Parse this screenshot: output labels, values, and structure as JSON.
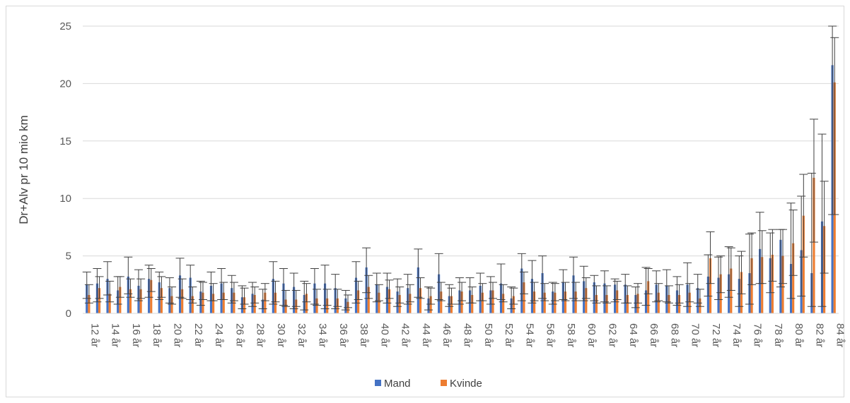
{
  "chart_data": {
    "type": "bar",
    "title": "",
    "xlabel": "",
    "ylabel": "Dr+Alv pr 10 mio km",
    "ylim": [
      0,
      25
    ],
    "yticks": [
      0,
      5,
      10,
      15,
      20,
      25
    ],
    "grid": true,
    "legend": "bottom",
    "categories": [
      "12 år",
      "13 år",
      "14 år",
      "15 år",
      "16 år",
      "17 år",
      "18 år",
      "19 år",
      "20 år",
      "21 år",
      "22 år",
      "23 år",
      "24 år",
      "25 år",
      "26 år",
      "27 år",
      "28 år",
      "29 år",
      "30 år",
      "31 år",
      "32 år",
      "33 år",
      "34 år",
      "35 år",
      "36 år",
      "37 år",
      "38 år",
      "39 år",
      "40 år",
      "41 år",
      "42 år",
      "43 år",
      "44 år",
      "45 år",
      "46 år",
      "47 år",
      "48 år",
      "49 år",
      "50 år",
      "51 år",
      "52 år",
      "53 år",
      "54 år",
      "55 år",
      "56 år",
      "57 år",
      "58 år",
      "59 år",
      "60 år",
      "61 år",
      "62 år",
      "63 år",
      "64 år",
      "65 år",
      "66 år",
      "67 år",
      "68 år",
      "69 år",
      "70 år",
      "71 år",
      "72 år",
      "73 år",
      "74 år",
      "75 år",
      "76 år",
      "77 år",
      "78 år",
      "79 år",
      "80 år",
      "81 år",
      "82 år",
      "83 år",
      "84 år"
    ],
    "series": [
      {
        "name": "Mand",
        "color": "#4472c4",
        "values": [
          2.5,
          2.6,
          3.0,
          2.0,
          3.2,
          2.4,
          3.0,
          2.7,
          2.2,
          3.3,
          3.1,
          1.9,
          2.4,
          2.6,
          2.2,
          1.4,
          1.7,
          1.2,
          3.0,
          2.6,
          2.3,
          1.6,
          2.6,
          2.6,
          2.2,
          1.3,
          3.1,
          4.0,
          2.5,
          2.3,
          1.9,
          2.2,
          4.0,
          1.3,
          3.4,
          1.5,
          2.0,
          2.0,
          2.4,
          2.0,
          2.6,
          1.3,
          3.9,
          3.0,
          3.5,
          1.9,
          2.7,
          3.3,
          2.8,
          2.7,
          2.6,
          2.5,
          2.5,
          1.6,
          2.0,
          2.5,
          2.4,
          2.0,
          2.5,
          2.2,
          3.2,
          3.1,
          3.4,
          3.0,
          3.5,
          5.6,
          4.8,
          6.4,
          4.3,
          5.5,
          3.5,
          8.0,
          21.6
        ],
        "err_low": [
          1.3,
          1.0,
          1.6,
          0.8,
          1.7,
          1.1,
          1.4,
          1.2,
          0.9,
          1.4,
          1.2,
          0.7,
          1.1,
          1.2,
          0.9,
          0.4,
          0.6,
          0.4,
          0.8,
          0.7,
          0.4,
          0.3,
          0.8,
          0.4,
          0.4,
          0.3,
          0.9,
          1.8,
          1.0,
          0.9,
          0.6,
          0.8,
          1.4,
          0.3,
          1.2,
          0.6,
          0.8,
          0.9,
          1.1,
          0.8,
          1.2,
          0.4,
          1.1,
          0.9,
          1.3,
          0.8,
          1.2,
          1.3,
          1.1,
          1.1,
          1.0,
          1.0,
          0.9,
          0.5,
          0.7,
          1.0,
          1.0,
          0.7,
          0.6,
          0.9,
          1.5,
          1.2,
          1.4,
          0.6,
          0.8,
          2.6,
          1.8,
          2.3,
          1.3,
          1.5,
          0.6,
          0.6,
          8.6
        ],
        "err_high": [
          3.6,
          3.9,
          4.5,
          3.2,
          4.9,
          3.8,
          4.2,
          3.6,
          3.1,
          4.8,
          4.2,
          2.8,
          3.6,
          3.9,
          3.3,
          2.4,
          2.7,
          2.1,
          4.5,
          3.9,
          3.5,
          2.8,
          3.9,
          4.2,
          3.4,
          2.0,
          4.5,
          5.7,
          3.5,
          3.5,
          3.0,
          3.4,
          5.6,
          2.3,
          5.2,
          2.5,
          3.1,
          3.1,
          3.5,
          3.2,
          4.3,
          2.3,
          5.2,
          4.6,
          5.0,
          2.7,
          3.8,
          4.9,
          4.1,
          3.3,
          3.7,
          3.0,
          3.4,
          2.3,
          4.0,
          3.7,
          3.8,
          3.2,
          4.4,
          3.4,
          5.1,
          4.9,
          5.8,
          5.0,
          6.9,
          8.8,
          7.0,
          7.3,
          9.6,
          10.2,
          12.2,
          15.6,
          25.0
        ]
      },
      {
        "name": "Kvinde",
        "color": "#ed7d31",
        "values": [
          1.6,
          2.2,
          1.7,
          2.3,
          2.1,
          2.1,
          2.9,
          2.2,
          1.5,
          2.1,
          1.5,
          1.8,
          1.7,
          1.8,
          1.8,
          1.4,
          1.6,
          1.8,
          1.8,
          1.2,
          1.2,
          1.7,
          1.3,
          1.3,
          1.3,
          1.0,
          2.0,
          2.3,
          1.8,
          2.1,
          1.6,
          1.7,
          2.2,
          1.5,
          1.9,
          1.5,
          1.9,
          1.6,
          1.8,
          2.0,
          1.7,
          1.5,
          2.7,
          1.9,
          1.8,
          1.8,
          1.9,
          1.9,
          2.2,
          1.6,
          1.6,
          2.0,
          1.6,
          1.7,
          2.8,
          1.8,
          1.6,
          1.6,
          1.8,
          1.3,
          4.8,
          3.4,
          3.9,
          3.6,
          4.8,
          4.9,
          5.1,
          5.0,
          6.1,
          8.5,
          11.8,
          7.6,
          20.1
        ],
        "err_low": [
          0.9,
          1.3,
          1.0,
          1.4,
          1.4,
          1.3,
          1.9,
          1.4,
          0.8,
          1.3,
          0.9,
          1.2,
          1.1,
          1.2,
          1.1,
          0.8,
          0.9,
          1.1,
          1.0,
          0.6,
          0.6,
          1.0,
          0.7,
          0.7,
          0.6,
          0.5,
          1.2,
          1.3,
          1.1,
          1.3,
          0.9,
          1.0,
          1.3,
          0.8,
          1.1,
          0.8,
          1.1,
          0.9,
          1.1,
          1.3,
          1.0,
          0.8,
          1.7,
          1.1,
          1.1,
          1.1,
          1.1,
          1.1,
          1.3,
          0.9,
          0.9,
          1.2,
          0.9,
          0.9,
          1.7,
          1.1,
          0.9,
          0.9,
          1.0,
          0.6,
          2.6,
          1.8,
          2.0,
          1.7,
          2.5,
          2.6,
          2.8,
          2.6,
          3.3,
          4.9,
          6.2,
          3.5,
          8.6
        ],
        "err_high": [
          2.5,
          3.2,
          2.8,
          3.2,
          3.0,
          3.0,
          3.9,
          3.2,
          2.3,
          3.0,
          2.3,
          2.7,
          2.6,
          2.7,
          2.7,
          2.2,
          2.3,
          2.6,
          2.8,
          2.0,
          2.0,
          2.6,
          2.1,
          2.1,
          2.1,
          1.6,
          2.8,
          3.3,
          2.5,
          2.9,
          2.3,
          2.5,
          3.1,
          2.2,
          2.7,
          2.2,
          2.7,
          2.3,
          2.6,
          2.7,
          2.5,
          2.2,
          3.6,
          2.7,
          2.6,
          2.6,
          2.7,
          2.7,
          3.1,
          2.4,
          2.4,
          2.8,
          2.4,
          2.6,
          3.9,
          2.6,
          2.4,
          2.5,
          2.6,
          2.1,
          7.1,
          5.0,
          5.7,
          5.4,
          7.0,
          7.2,
          7.3,
          7.3,
          9.0,
          12.1,
          16.9,
          11.5,
          24.0
        ]
      }
    ]
  }
}
